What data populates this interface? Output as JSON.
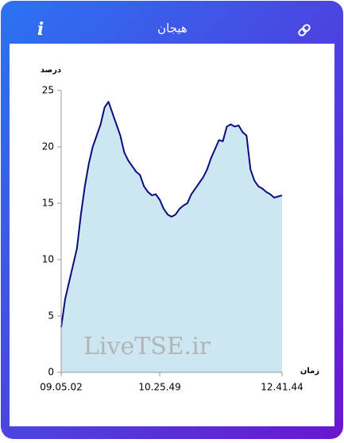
{
  "header": {
    "icon": "i",
    "title": "هیجان"
  },
  "watermark": "LiveTSE.ir",
  "chart_data": {
    "type": "area",
    "y_label": "درصد",
    "x_label": "زمان",
    "values": [
      4,
      6.5,
      8,
      9.5,
      11,
      14,
      16.5,
      18.5,
      20,
      21,
      22,
      23.5,
      24,
      23,
      22,
      21,
      19.5,
      18.8,
      18.3,
      17.8,
      17.5,
      16.5,
      16,
      15.7,
      15.8,
      15.3,
      14.5,
      14,
      13.8,
      14,
      14.5,
      14.8,
      15,
      15.8,
      16.3,
      16.8,
      17.3,
      18,
      19,
      19.8,
      20.6,
      20.5,
      21.8,
      22,
      21.8,
      21.9,
      21.3,
      21,
      18,
      17,
      16.5,
      16.3,
      16,
      15.8,
      15.5,
      15.6,
      15.7
    ],
    "color": "#0b0b7e",
    "fill": "#cce7f2",
    "xlim": [
      0,
      56
    ],
    "xticks": [
      {
        "value": 0,
        "label": "09.05.02"
      },
      {
        "value": 25,
        "label": "10.25.49"
      },
      {
        "value": 56,
        "label": "12.41.44"
      }
    ],
    "ylim": [
      0,
      25
    ],
    "yticks": [
      0,
      5,
      10,
      15,
      20,
      25
    ]
  }
}
